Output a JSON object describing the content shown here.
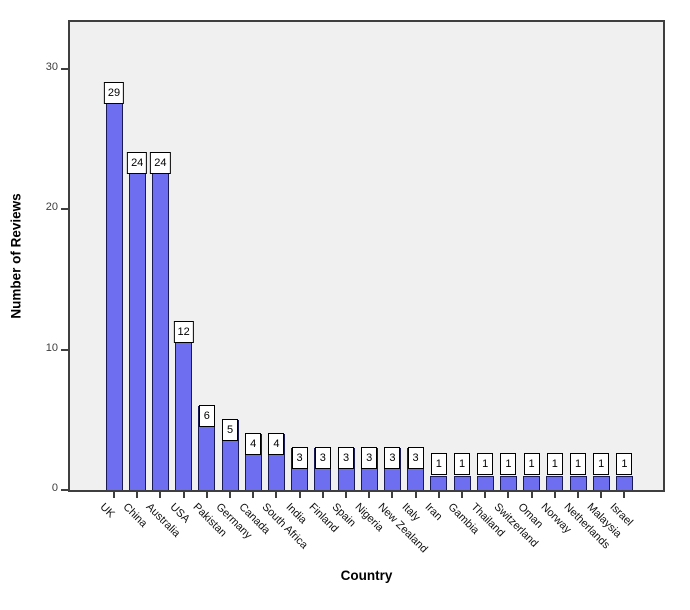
{
  "chart_data": {
    "type": "bar",
    "title": "",
    "xlabel": "Country",
    "ylabel": "Number of Reviews",
    "categories": [
      "UK",
      "China",
      "Australia",
      "USA",
      "Pakistan",
      "Germany",
      "Canada",
      "South Africa",
      "India",
      "Finland",
      "Spain",
      "Nigeria",
      "New Zealand",
      "Italy",
      "Iran",
      "Gambia",
      "Thailand",
      "Switzerland",
      "Oman",
      "Norway",
      "Netherlands",
      "Malaysia",
      "Israel"
    ],
    "values": [
      29,
      24,
      24,
      12,
      6,
      5,
      4,
      4,
      3,
      3,
      3,
      3,
      3,
      3,
      1,
      1,
      1,
      1,
      1,
      1,
      1,
      1,
      1
    ],
    "y_ticks": [
      "0",
      "10",
      "20",
      "30"
    ],
    "ylim": [
      0,
      33.5
    ],
    "grid": false,
    "legend": null,
    "bar_value_labels": true,
    "colors": {
      "bar_fill": "#6e6ef0",
      "bar_border": "#1a1a55",
      "plot_background": "#f0f0f0",
      "frame_border": "#3f3f3f",
      "value_box_background": "#ffffff",
      "value_box_border": "#000000",
      "tick_text": "#3d3d3d",
      "text": "#000000"
    }
  }
}
